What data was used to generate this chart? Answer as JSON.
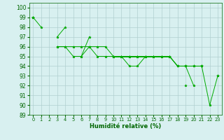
{
  "xlabel": "Humidité relative (%)",
  "background_color": "#d8f0f0",
  "grid_color": "#b0d0d0",
  "line_color": "#00aa00",
  "marker": "*",
  "xlim": [
    -0.5,
    23.5
  ],
  "ylim": [
    89,
    100.5
  ],
  "yticks": [
    89,
    90,
    91,
    92,
    93,
    94,
    95,
    96,
    97,
    98,
    99,
    100
  ],
  "xticks": [
    0,
    1,
    2,
    3,
    4,
    5,
    6,
    7,
    8,
    9,
    10,
    11,
    12,
    13,
    14,
    15,
    16,
    17,
    18,
    19,
    20,
    21,
    22,
    23
  ],
  "series": [
    [
      99,
      98,
      null,
      97,
      98,
      null,
      95,
      97,
      null,
      null,
      95,
      95,
      95,
      95,
      95,
      95,
      95,
      95,
      null,
      92,
      null,
      94,
      90,
      93
    ],
    [
      99,
      null,
      null,
      96,
      96,
      96,
      96,
      96,
      96,
      96,
      95,
      95,
      95,
      95,
      95,
      95,
      95,
      95,
      94,
      94,
      94,
      94,
      null,
      null
    ],
    [
      99,
      null,
      null,
      96,
      96,
      95,
      95,
      96,
      95,
      95,
      95,
      95,
      95,
      95,
      95,
      95,
      95,
      95,
      94,
      94,
      92,
      null,
      null,
      null
    ],
    [
      99,
      null,
      null,
      null,
      null,
      null,
      null,
      null,
      null,
      null,
      95,
      95,
      94,
      94,
      95,
      95,
      95,
      95,
      94,
      94,
      94,
      94,
      null,
      93
    ]
  ]
}
